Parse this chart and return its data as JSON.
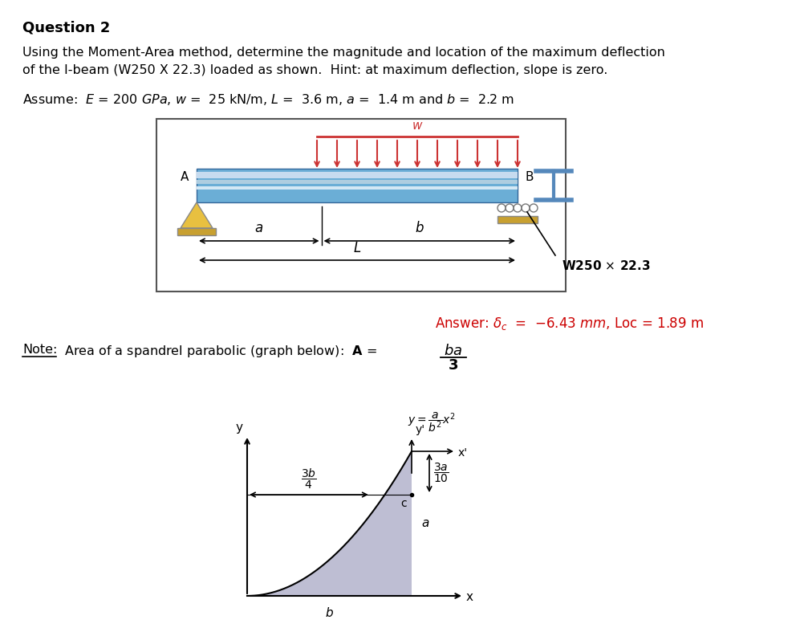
{
  "title": "Question 2",
  "problem_text_line1": "Using the Moment-Area method, determine the magnitude and location of the maximum deflection",
  "problem_text_line2": "of the I-beam (W250 X 22.3) loaded as shown.  Hint: at maximum deflection, slope is zero.",
  "assume_text": "Assume:  $E$ = 200 $GPa$, $w$ =  25 kN/m, $L$ =  3.6 m, $a$ =  1.4 m and $b$ =  2.2 m",
  "answer_text": "Answer: $\\delta_c$  =  $-$6.43 $mm$, Loc = 1.89 m",
  "beam_color": "#6baed6",
  "load_arrow_color": "#cc3333",
  "answer_color": "#cc0000",
  "bg_color": "#ffffff",
  "parabola_fill": "#b3b3cc",
  "box_edge_color": "#555555",
  "support_color": "#c8a030",
  "isec_color": "#5588bb"
}
